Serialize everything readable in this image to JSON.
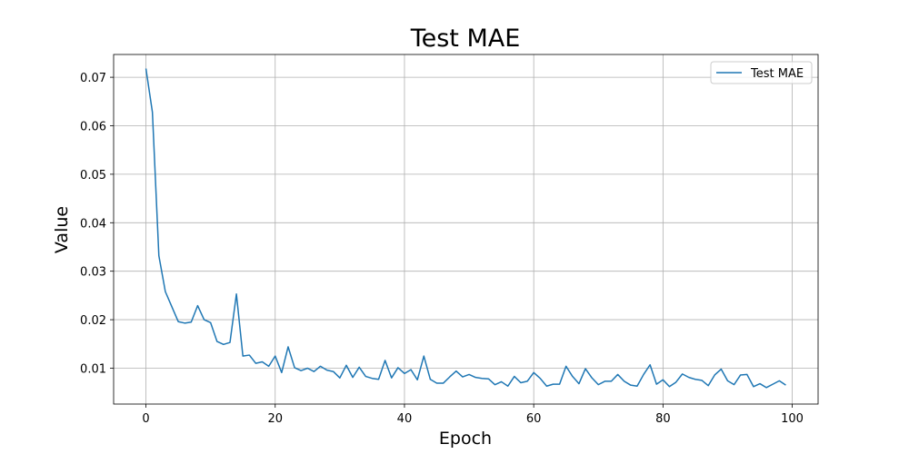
{
  "chart_data": {
    "type": "line",
    "title": "Test MAE",
    "xlabel": "Epoch",
    "ylabel": "Value",
    "xlim": [
      -5,
      104
    ],
    "ylim": [
      0.0026,
      0.0747
    ],
    "xticks": [
      0,
      20,
      40,
      60,
      80,
      100
    ],
    "yticks": [
      0.01,
      0.02,
      0.03,
      0.04,
      0.05,
      0.06,
      0.07
    ],
    "grid": true,
    "legend_position": "top-right",
    "colors": {
      "series": "#1f77b4",
      "grid": "#b0b0b0",
      "axes": "#000000"
    },
    "series": [
      {
        "name": "Test MAE",
        "x": [
          0,
          1,
          2,
          3,
          4,
          5,
          6,
          7,
          8,
          9,
          10,
          11,
          12,
          13,
          14,
          15,
          16,
          17,
          18,
          19,
          20,
          21,
          22,
          23,
          24,
          25,
          26,
          27,
          28,
          29,
          30,
          31,
          32,
          33,
          34,
          35,
          36,
          37,
          38,
          39,
          40,
          41,
          42,
          43,
          44,
          45,
          46,
          47,
          48,
          49,
          50,
          51,
          52,
          53,
          54,
          55,
          56,
          57,
          58,
          59,
          60,
          61,
          62,
          63,
          64,
          65,
          66,
          67,
          68,
          69,
          70,
          71,
          72,
          73,
          74,
          75,
          76,
          77,
          78,
          79,
          80,
          81,
          82,
          83,
          84,
          85,
          86,
          87,
          88,
          89,
          90,
          91,
          92,
          93,
          94,
          95,
          96,
          97,
          98,
          99
        ],
        "values": [
          0.0718,
          0.0628,
          0.0332,
          0.0258,
          0.0227,
          0.0196,
          0.0193,
          0.0195,
          0.0229,
          0.02,
          0.0194,
          0.0155,
          0.0149,
          0.0153,
          0.0253,
          0.0125,
          0.0127,
          0.011,
          0.0113,
          0.0104,
          0.0125,
          0.0091,
          0.0144,
          0.0101,
          0.0095,
          0.01,
          0.0093,
          0.0104,
          0.0096,
          0.0093,
          0.008,
          0.0106,
          0.0081,
          0.0102,
          0.0083,
          0.0079,
          0.0077,
          0.0116,
          0.008,
          0.0101,
          0.0089,
          0.0097,
          0.0076,
          0.0125,
          0.0077,
          0.0069,
          0.0069,
          0.0082,
          0.0094,
          0.0082,
          0.0087,
          0.0081,
          0.0079,
          0.0078,
          0.0066,
          0.0072,
          0.0063,
          0.0083,
          0.007,
          0.0073,
          0.0091,
          0.0079,
          0.0063,
          0.0067,
          0.0067,
          0.0104,
          0.0083,
          0.0068,
          0.0099,
          0.008,
          0.0066,
          0.0073,
          0.0073,
          0.0087,
          0.0073,
          0.0065,
          0.0063,
          0.0087,
          0.0107,
          0.0067,
          0.0076,
          0.0062,
          0.0071,
          0.0088,
          0.0081,
          0.0077,
          0.0075,
          0.0064,
          0.0086,
          0.0098,
          0.0074,
          0.0066,
          0.0086,
          0.0087,
          0.0062,
          0.0068,
          0.006,
          0.0067,
          0.0074,
          0.0065
        ]
      }
    ]
  }
}
